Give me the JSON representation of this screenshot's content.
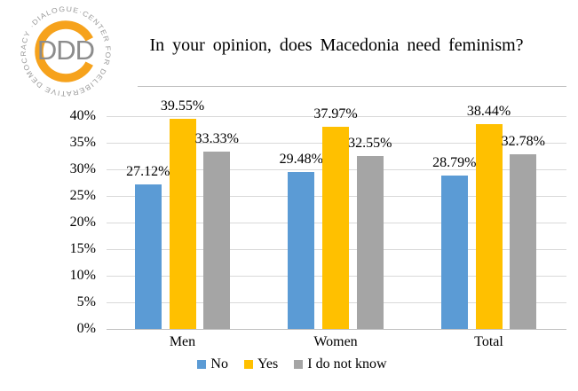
{
  "logo": {
    "center_text": "DDD",
    "ring_text": "·DIALOGUE·CENTER FOR DELIBERATIVE DEMOCRACY",
    "ring_color": "#F6A21C",
    "letters_color": "#8C8C8C",
    "ring_text_color": "#999999"
  },
  "title": "In your opinion, does Macedonia need feminism?",
  "chart_data": {
    "type": "bar",
    "title": "In your opinion, does Macedonia need feminism?",
    "categories": [
      "Men",
      "Women",
      "Total"
    ],
    "series": [
      {
        "name": "No",
        "color": "#5B9BD5",
        "values": [
          27.12,
          29.48,
          28.79
        ],
        "labels": [
          "27.12%",
          "29.48%",
          "28.79%"
        ]
      },
      {
        "name": "Yes",
        "color": "#FFC000",
        "values": [
          39.55,
          37.97,
          38.44
        ],
        "labels": [
          "39.55%",
          "37.97%",
          "38.44%"
        ]
      },
      {
        "name": "I do not know",
        "color": "#A5A5A5",
        "values": [
          33.33,
          32.55,
          32.78
        ],
        "labels": [
          "33.33%",
          "32.55%",
          "32.78%"
        ]
      }
    ],
    "y_ticks": [
      "0%",
      "5%",
      "10%",
      "15%",
      "20%",
      "25%",
      "30%",
      "35%",
      "40%"
    ],
    "ylim": [
      0,
      40
    ],
    "grid": true,
    "legend_position": "bottom",
    "grid_color": "#D9D9D9",
    "axis_color": "#BFBFBF"
  }
}
